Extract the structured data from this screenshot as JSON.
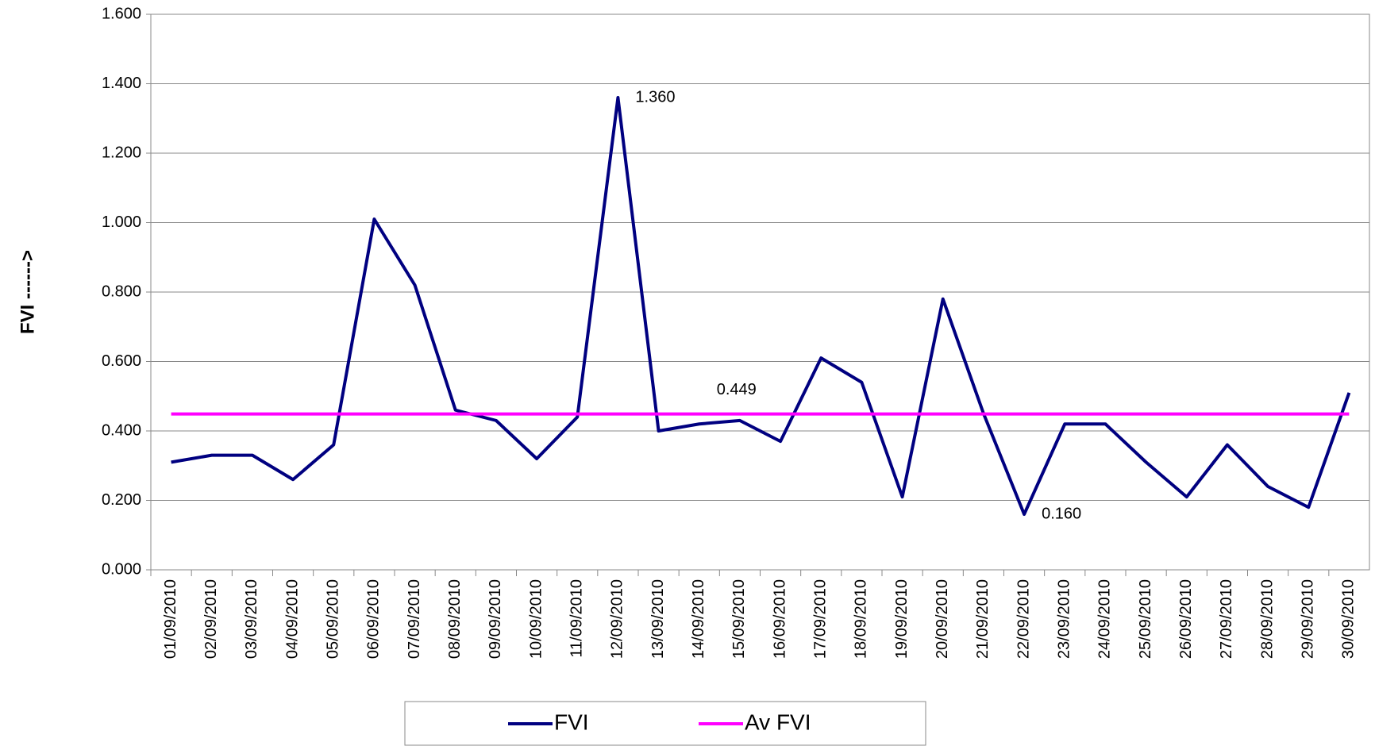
{
  "chart_data": {
    "type": "line",
    "y_label": "FVI ------>",
    "categories": [
      "01/09/2010",
      "02/09/2010",
      "03/09/2010",
      "04/09/2010",
      "05/09/2010",
      "06/09/2010",
      "07/09/2010",
      "08/09/2010",
      "09/09/2010",
      "10/09/2010",
      "11/09/2010",
      "12/09/2010",
      "13/09/2010",
      "14/09/2010",
      "15/09/2010",
      "16/09/2010",
      "17/09/2010",
      "18/09/2010",
      "19/09/2010",
      "20/09/2010",
      "21/09/2010",
      "22/09/2010",
      "23/09/2010",
      "24/09/2010",
      "25/09/2010",
      "26/09/2010",
      "27/09/2010",
      "28/09/2010",
      "29/09/2010",
      "30/09/2010"
    ],
    "series": [
      {
        "name": "FVI",
        "color": "#000080",
        "values": [
          0.31,
          0.33,
          0.33,
          0.26,
          0.36,
          1.01,
          0.82,
          0.46,
          0.43,
          0.32,
          0.44,
          1.36,
          0.4,
          0.42,
          0.43,
          0.37,
          0.61,
          0.54,
          0.21,
          0.78,
          0.45,
          0.16,
          0.42,
          0.42,
          0.31,
          0.21,
          0.36,
          0.24,
          0.18,
          0.51
        ],
        "value_labels": [
          null,
          null,
          null,
          null,
          null,
          null,
          null,
          null,
          null,
          null,
          null,
          "1.360",
          null,
          null,
          null,
          null,
          null,
          null,
          null,
          null,
          null,
          "0.160",
          null,
          null,
          null,
          null,
          null,
          null,
          null,
          null
        ]
      },
      {
        "name": "Av FVI",
        "color": "#ff00ff",
        "values": [
          0.449,
          0.449,
          0.449,
          0.449,
          0.449,
          0.449,
          0.449,
          0.449,
          0.449,
          0.449,
          0.449,
          0.449,
          0.449,
          0.449,
          0.449,
          0.449,
          0.449,
          0.449,
          0.449,
          0.449,
          0.449,
          0.449,
          0.449,
          0.449,
          0.449,
          0.449,
          0.449,
          0.449,
          0.449,
          0.449
        ],
        "value_labels": [
          null,
          null,
          null,
          null,
          null,
          null,
          null,
          null,
          null,
          null,
          null,
          null,
          null,
          "0.449",
          null,
          null,
          null,
          null,
          null,
          null,
          null,
          null,
          null,
          null,
          null,
          null,
          null,
          null,
          null,
          null
        ]
      }
    ],
    "ylim": [
      0,
      1.6
    ],
    "yticks": [
      {
        "value": 0,
        "label": "0.000"
      },
      {
        "value": 0.2,
        "label": "0.200"
      },
      {
        "value": 0.4,
        "label": "0.400"
      },
      {
        "value": 0.6,
        "label": "0.600"
      },
      {
        "value": 0.8,
        "label": "0.800"
      },
      {
        "value": 1.0,
        "label": "1.000"
      },
      {
        "value": 1.2,
        "label": "1.200"
      },
      {
        "value": 1.4,
        "label": "1.400"
      },
      {
        "value": 1.6,
        "label": "1.600"
      }
    ],
    "grid": true,
    "legend": "bottom"
  }
}
